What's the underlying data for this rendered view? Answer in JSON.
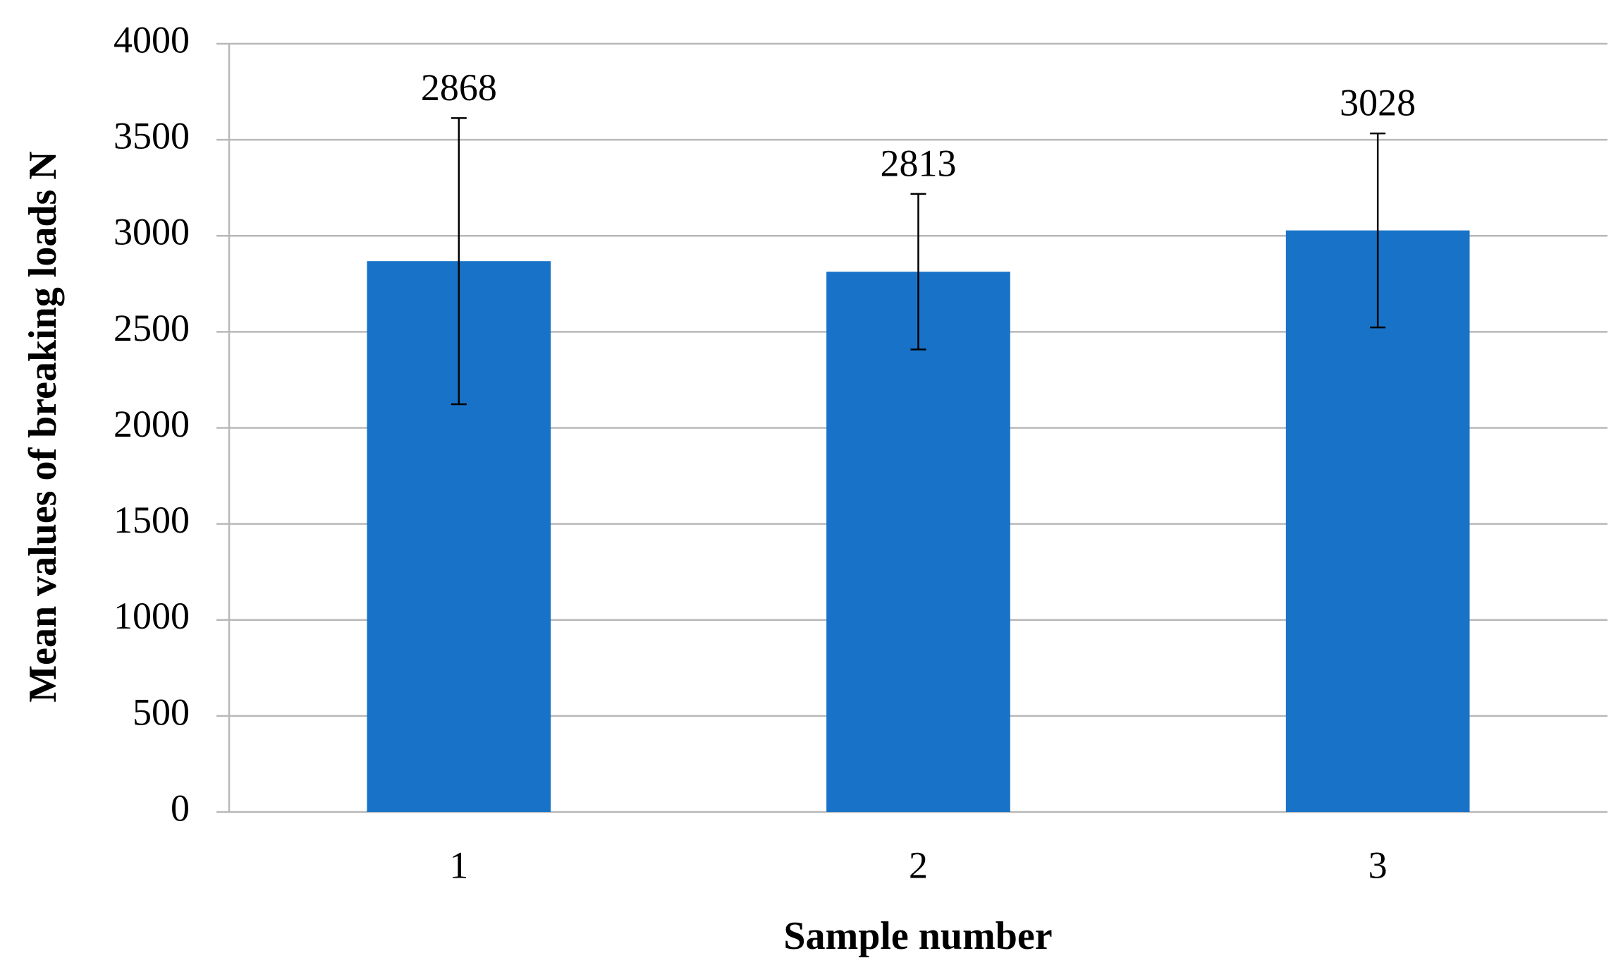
{
  "chart_data": {
    "type": "bar",
    "x_label": "Sample number",
    "y_label": "Mean values of breaking loads N",
    "categories": [
      "1",
      "2",
      "3"
    ],
    "values": [
      2868,
      2813,
      3028
    ],
    "errors": [
      745,
      405,
      505
    ],
    "color": "#1873c8",
    "ylim": [
      0,
      4000
    ],
    "yticks": [
      0,
      500,
      1000,
      1500,
      2000,
      2500,
      3000,
      3500,
      4000
    ],
    "grid": true
  }
}
